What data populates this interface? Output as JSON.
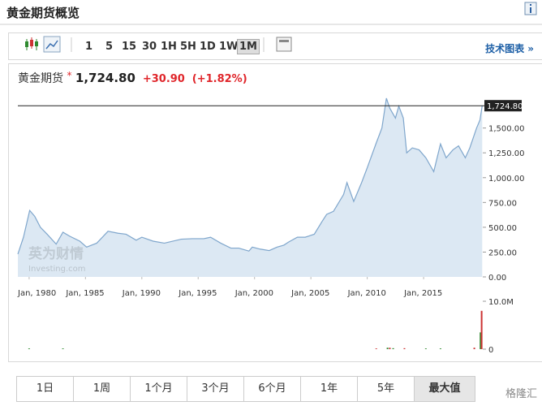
{
  "header": {
    "title": "黄金期货概览"
  },
  "toolbar": {
    "intervals": [
      "1",
      "5",
      "15",
      "30",
      "1H",
      "5H",
      "1D",
      "1W",
      "1M"
    ],
    "link": "技术图表 »"
  },
  "quote": {
    "name": "黄金期货",
    "mark": "*",
    "price": "1,724.80",
    "change": "+30.90",
    "change_percent": "(+1.82%)"
  },
  "watermark": {
    "cn": "英为财情",
    "en": "Investing.com"
  },
  "ranges": [
    "1日",
    "1周",
    "1个月",
    "3个月",
    "6个月",
    "1年",
    "5年",
    "最大值"
  ],
  "source": "格隆汇",
  "chart_data": {
    "type": "area",
    "series": [
      {
        "color": "#7fa6cc",
        "fill": "#dce8f3",
        "x": [
          1979.0,
          1979.5,
          1980.05,
          1980.5,
          1981.0,
          1981.6,
          1982.4,
          1983.0,
          1983.6,
          1984.5,
          1985.1,
          1986.0,
          1987.0,
          1987.9,
          1988.6,
          1989.5,
          1990.0,
          1991.0,
          1992.0,
          1993.5,
          1994.5,
          1995.5,
          1996.1,
          1997.0,
          1997.9,
          1998.6,
          1999.5,
          1999.8,
          2000.5,
          2001.3,
          2002.0,
          2002.6,
          2003.0,
          2003.8,
          2004.5,
          2005.3,
          2006.0,
          2006.4,
          2007.0,
          2007.9,
          2008.2,
          2008.8,
          2009.5,
          2010.0,
          2010.8,
          2011.3,
          2011.7,
          2012.0,
          2012.5,
          2012.8,
          2013.2,
          2013.5,
          2014.0,
          2014.6,
          2015.2,
          2015.9,
          2016.5,
          2017.0,
          2017.6,
          2018.1,
          2018.7,
          2019.1,
          2019.7,
          2020.0,
          2020.2
        ],
        "values": [
          230,
          400,
          670,
          610,
          500,
          430,
          330,
          450,
          410,
          360,
          300,
          340,
          460,
          440,
          430,
          370,
          400,
          360,
          340,
          380,
          385,
          385,
          400,
          340,
          290,
          290,
          260,
          300,
          280,
          265,
          300,
          320,
          350,
          400,
          400,
          430,
          560,
          630,
          660,
          830,
          950,
          760,
          950,
          1100,
          1350,
          1500,
          1800,
          1700,
          1600,
          1720,
          1600,
          1250,
          1300,
          1280,
          1200,
          1060,
          1340,
          1200,
          1280,
          1320,
          1200,
          1300,
          1500,
          1580,
          1724.8
        ]
      }
    ],
    "xlim": [
      1979.0,
      2020.25
    ],
    "xticks": [
      {
        "value": 1980,
        "label": "Jan, 1980"
      },
      {
        "value": 1985,
        "label": "Jan, 1985"
      },
      {
        "value": 1990,
        "label": "Jan, 1990"
      },
      {
        "value": 1995,
        "label": "Jan, 1995"
      },
      {
        "value": 2000,
        "label": "Jan, 2000"
      },
      {
        "value": 2005,
        "label": "Jan, 2005"
      },
      {
        "value": 2010,
        "label": "Jan, 2010"
      },
      {
        "value": 2015,
        "label": "Jan, 2015"
      }
    ],
    "ylim": [
      0,
      1890
    ],
    "yticks": [
      {
        "value": 0,
        "label": "0.00"
      },
      {
        "value": 250,
        "label": "250.00"
      },
      {
        "value": 500,
        "label": "500.00"
      },
      {
        "value": 750,
        "label": "750.00"
      },
      {
        "value": 1000,
        "label": "1,000.00"
      },
      {
        "value": 1250,
        "label": "1,250.00"
      },
      {
        "value": 1500,
        "label": "1,500.00"
      }
    ],
    "current": {
      "value": 1724.8,
      "label": "1,724.80"
    },
    "volume": {
      "x": [
        1980.0,
        1983.0,
        2010.8,
        2011.8,
        2012.0,
        2012.3,
        2013.3,
        2015.2,
        2016.5,
        2019.5,
        2020.05,
        2020.15
      ],
      "values": [
        150000,
        150000,
        150000,
        300000,
        300000,
        200000,
        200000,
        150000,
        150000,
        300000,
        3500000,
        8000000
      ],
      "colors": [
        "#2f8a2f",
        "#2f8a2f",
        "#c33",
        "#2f8a2f",
        "#c33",
        "#2f8a2f",
        "#c33",
        "#2f8a2f",
        "#2f8a2f",
        "#c33",
        "#2f8a2f",
        "#c33"
      ],
      "ylim": [
        0,
        10000000
      ],
      "yticks": [
        0,
        {
          "value": 10000000,
          "label": "10.0M"
        }
      ]
    }
  }
}
